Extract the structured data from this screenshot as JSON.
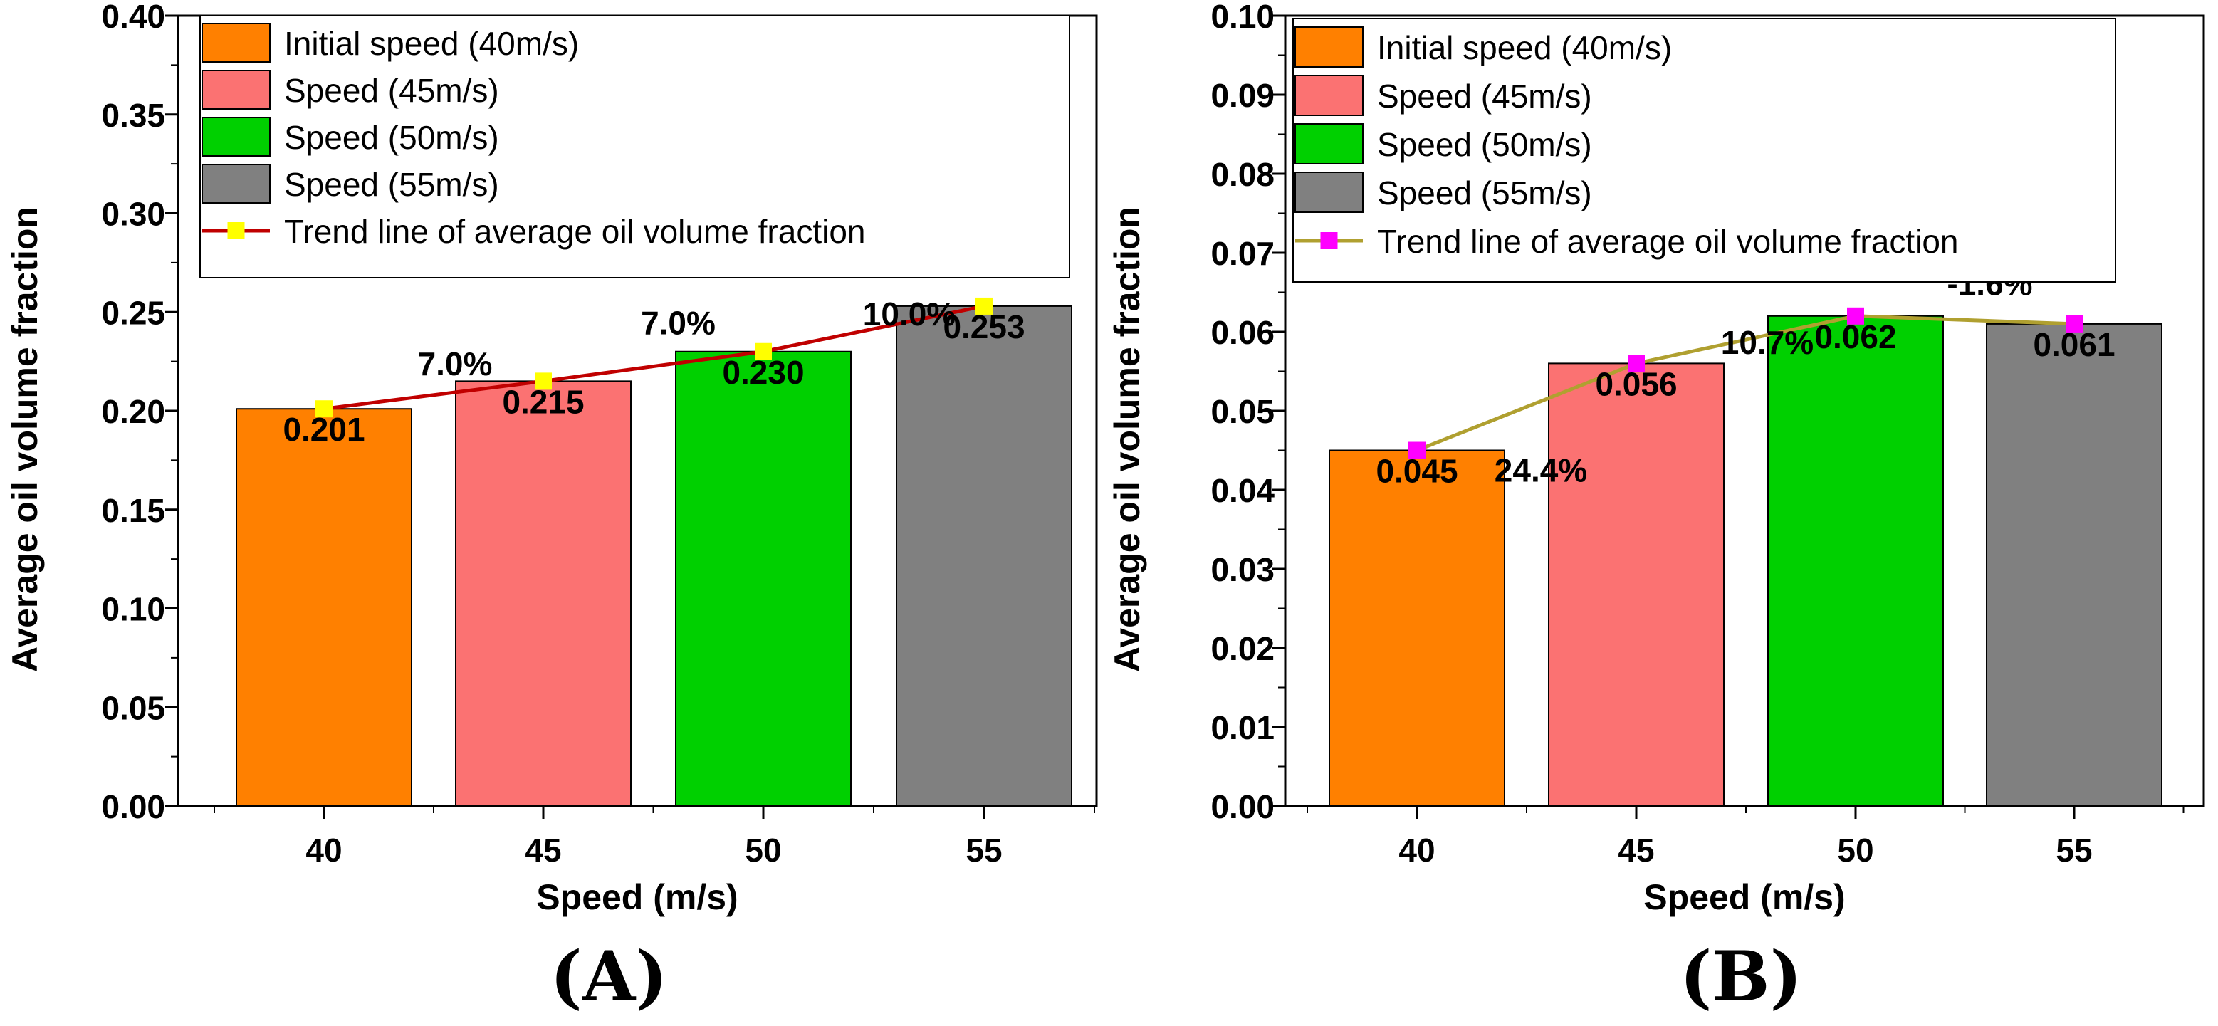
{
  "chart_data": [
    {
      "panel_label": "(A)",
      "type": "bar",
      "title": "",
      "xlabel": "Speed (m/s)",
      "ylabel": "Average oil volume fraction",
      "categories": [
        "40",
        "45",
        "50",
        "55"
      ],
      "values": [
        0.201,
        0.215,
        0.23,
        0.253
      ],
      "bar_labels": [
        "0.201",
        "0.215",
        "0.230",
        "0.253"
      ],
      "ylim": [
        0,
        0.4
      ],
      "yticks": [
        "0.00",
        "0.05",
        "0.10",
        "0.15",
        "0.20",
        "0.25",
        "0.30",
        "0.35",
        "0.40"
      ],
      "grid": false,
      "legend_position": "top-center",
      "series": [
        {
          "name": "Initial speed (40m/s)",
          "color": "#ff8000"
        },
        {
          "name": "Speed (45m/s)",
          "color": "#fb7272"
        },
        {
          "name": "Speed (50m/s)",
          "color": "#00d000"
        },
        {
          "name": "Speed (55m/s)",
          "color": "#808080"
        }
      ],
      "trend": {
        "name": "Trend line of average oil volume fraction",
        "line_color": "#c00000",
        "marker_color": "#ffff00",
        "values": [
          0.201,
          0.215,
          0.23,
          0.253
        ],
        "change_labels": [
          "7.0%",
          "7.0%",
          "10.0%"
        ]
      }
    },
    {
      "panel_label": "(B)",
      "type": "bar",
      "title": "",
      "xlabel": "Speed (m/s)",
      "ylabel": "Average oil volume fraction",
      "categories": [
        "40",
        "45",
        "50",
        "55"
      ],
      "values": [
        0.045,
        0.056,
        0.062,
        0.061
      ],
      "bar_labels": [
        "0.045",
        "0.056",
        "0.062",
        "0.061"
      ],
      "ylim": [
        0,
        0.1
      ],
      "yticks": [
        "0.00",
        "0.01",
        "0.02",
        "0.03",
        "0.04",
        "0.05",
        "0.06",
        "0.07",
        "0.08",
        "0.09",
        "0.10"
      ],
      "grid": false,
      "legend_position": "top-center",
      "series": [
        {
          "name": "Initial speed (40m/s)",
          "color": "#ff8000"
        },
        {
          "name": "Speed (45m/s)",
          "color": "#fb7272"
        },
        {
          "name": "Speed (50m/s)",
          "color": "#00d000"
        },
        {
          "name": "Speed (55m/s)",
          "color": "#808080"
        }
      ],
      "trend": {
        "name": "Trend line of average oil volume fraction",
        "line_color": "#b0a030",
        "marker_color": "#ff00ff",
        "values": [
          0.045,
          0.056,
          0.062,
          0.061
        ],
        "change_labels": [
          "24.4%",
          "10.7%",
          "-1.6%"
        ]
      }
    }
  ]
}
